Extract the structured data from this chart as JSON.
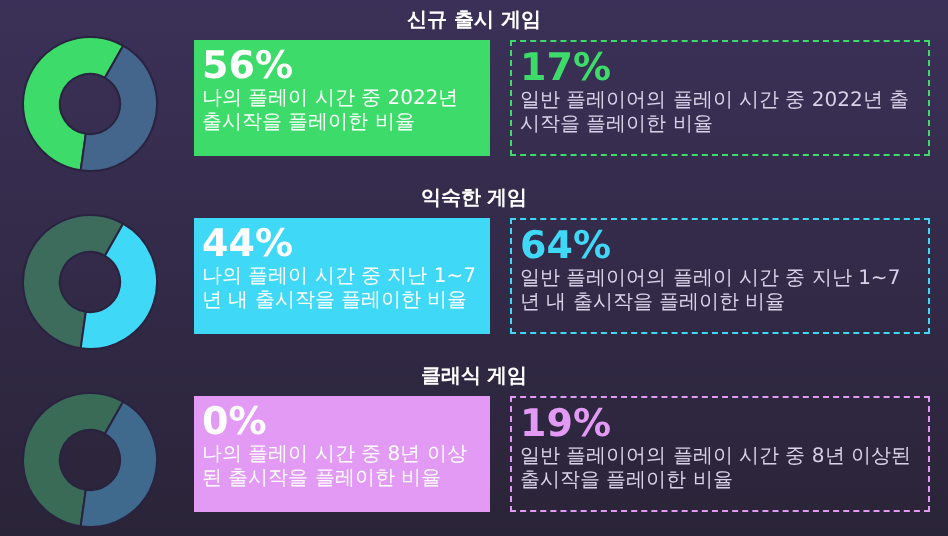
{
  "chart_data": [
    {
      "type": "donut",
      "title": "신규 출시 게임",
      "categories": [
        null,
        null,
        null
      ],
      "values": [
        56,
        44,
        0
      ],
      "colors": [
        "#3ddc6a",
        "#44668c",
        "#e29af5"
      ],
      "legend": false,
      "annotations": [
        "56%",
        "나의 플레이 시간 중 2022년 출시작을 플레이한 비율",
        "17%",
        "일반 플레이어의 플레이 시간 중 2022년 출시작을 플레이한 비율"
      ]
    },
    {
      "type": "donut",
      "title": "익숙한 게임",
      "categories": [
        null,
        null,
        null
      ],
      "values": [
        56,
        44,
        0
      ],
      "colors": [
        "#3d6b5c",
        "#3fd8f7",
        "#e29af5"
      ],
      "legend": false,
      "annotations": [
        "44%",
        "나의 플레이 시간 중 지난 1~7년 내 출시작을 플레이한 비율",
        "64%",
        "일반 플레이어의 플레이 시간 중 지난 1~7년 내 출시작을 플레이한 비율"
      ]
    },
    {
      "type": "donut",
      "title": "클래식 게임",
      "categories": [
        null,
        null,
        null
      ],
      "values": [
        56,
        44,
        0
      ],
      "colors": [
        "#3a6b56",
        "#3f6a8e",
        "#e29af5"
      ],
      "legend": false,
      "annotations": [
        "0%",
        "나의 플레이 시간 중 8년 이상된 출시작을 플레이한 비율",
        "19%",
        "일반 플레이어의 플레이 시간 중 8년 이상된 출시작을 플레이한 비율"
      ]
    }
  ]
}
